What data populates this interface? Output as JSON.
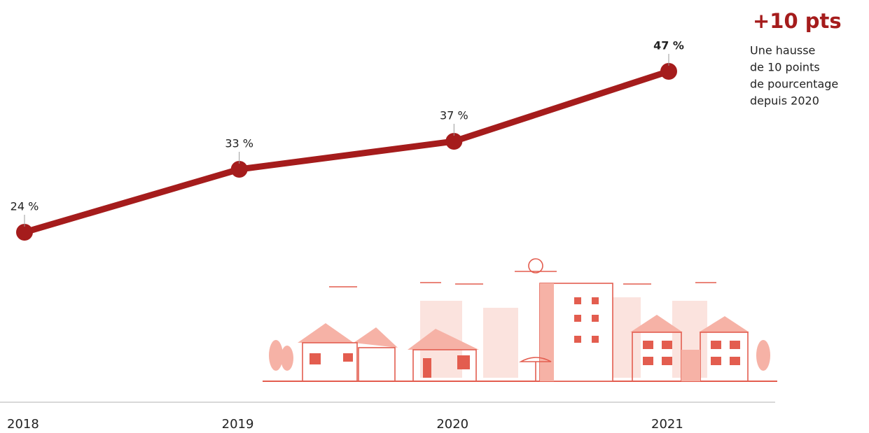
{
  "chart_data": {
    "type": "line",
    "categories": [
      "2018",
      "2019",
      "2020",
      "2021"
    ],
    "values": [
      24,
      33,
      37,
      47
    ],
    "value_labels": [
      "24 %",
      "33 %",
      "37 %",
      "47 %"
    ],
    "color": "#a51c1c",
    "ylim": [
      0,
      50
    ],
    "annotation": {
      "title": "+10 pts",
      "lines": [
        "Une hausse",
        "de 10 points",
        "de pourcentage",
        "depuis 2020"
      ]
    }
  }
}
